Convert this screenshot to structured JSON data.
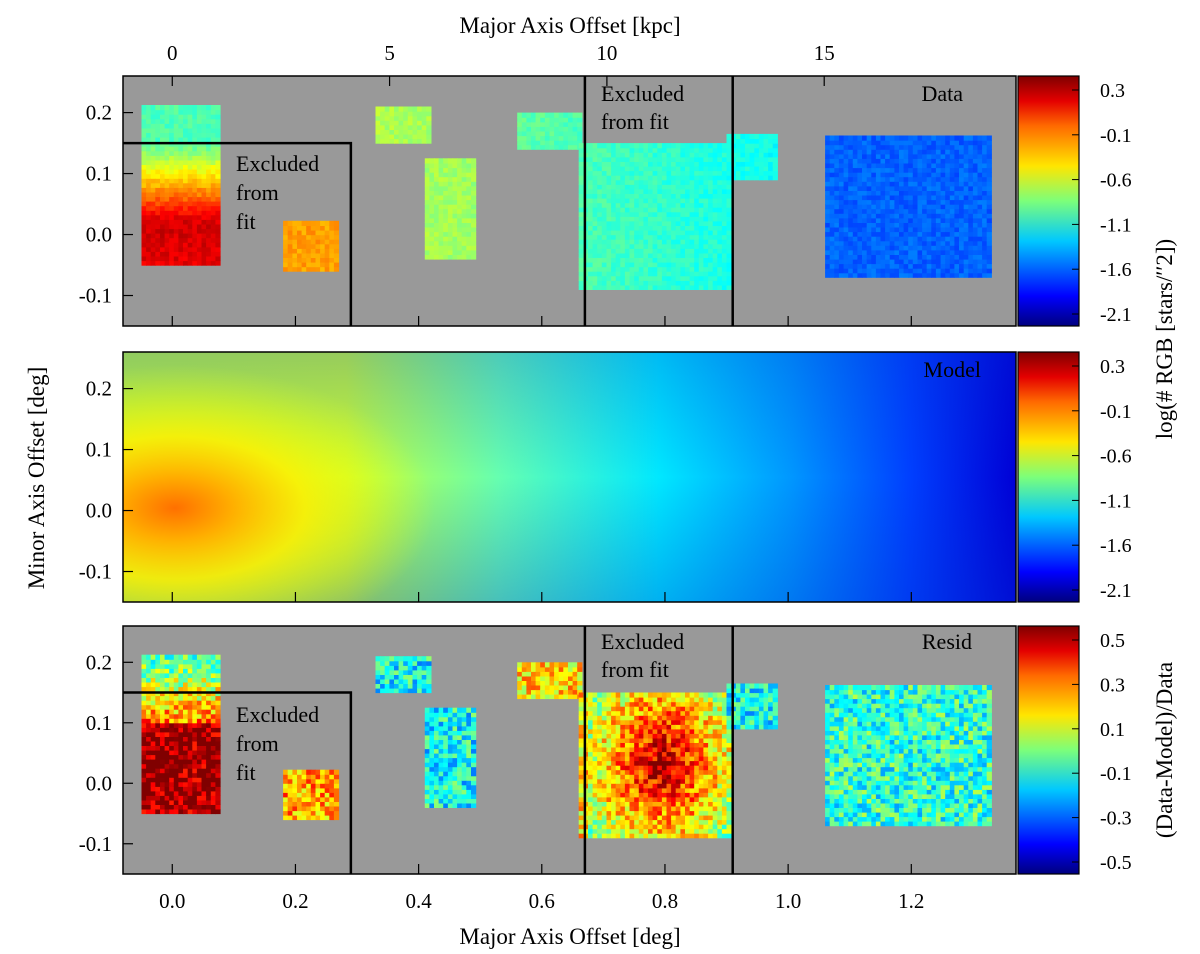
{
  "chart_data": {
    "type": "heatmap",
    "x_top_axis": {
      "label": "Major Axis Offset [kpc]",
      "ticks": [
        0,
        5,
        10,
        15
      ]
    },
    "x_bottom_axis": {
      "label": "Major Axis Offset [deg]",
      "ticks": [
        "0.0",
        "0.2",
        "0.4",
        "0.6",
        "0.8",
        "1.0",
        "1.2"
      ],
      "range": [
        -0.08,
        1.37
      ]
    },
    "y_axis": {
      "label": "Minor Axis Offset [deg]",
      "ticks": [
        "-0.1",
        "0.0",
        "0.1",
        "0.2"
      ],
      "range": [
        -0.15,
        0.26
      ]
    },
    "panels": [
      {
        "name": "Data",
        "label": "Data",
        "annotations": [
          {
            "lines": [
              "Excluded",
              "from",
              "fit"
            ]
          },
          {
            "lines": [
              "Excluded",
              "from fit"
            ]
          }
        ],
        "colorbar": {
          "ticks": [
            "0.3",
            "-0.1",
            "-0.6",
            "-1.1",
            "-1.6",
            "-2.1"
          ]
        }
      },
      {
        "name": "Model",
        "label": "Model",
        "colorbar": {
          "ticks": [
            "0.3",
            "-0.1",
            "-0.6",
            "-1.1",
            "-1.6",
            "-2.1"
          ]
        }
      },
      {
        "name": "Resid",
        "label": "Resid",
        "annotations": [
          {
            "lines": [
              "Excluded",
              "from",
              "fit"
            ]
          },
          {
            "lines": [
              "Excluded",
              "from fit"
            ]
          }
        ],
        "colorbar": {
          "ticks": [
            "0.5",
            "0.3",
            "0.1",
            "-0.1",
            "-0.3",
            "-0.5"
          ]
        }
      }
    ],
    "colorbar_label_top": "log(# RGB [stars/′′2])",
    "colorbar_label_bottom": "(Data-Model)/Data",
    "excluded_regions": [
      {
        "x_max_deg": 0.29,
        "y_max_deg": 0.15
      },
      {
        "x_min_deg": 0.67,
        "x_max_deg": 0.91
      }
    ],
    "fields_deg": [
      {
        "x": [
          -0.05,
          0.07
        ],
        "y": [
          -0.05,
          0.21
        ]
      },
      {
        "x": [
          0.18,
          0.27
        ],
        "y": [
          -0.06,
          0.02
        ]
      },
      {
        "x": [
          0.33,
          0.42
        ],
        "y": [
          0.15,
          0.21
        ]
      },
      {
        "x": [
          0.41,
          0.49
        ],
        "y": [
          -0.04,
          0.12
        ]
      },
      {
        "x": [
          0.56,
          0.66
        ],
        "y": [
          0.14,
          0.2
        ]
      },
      {
        "x": [
          0.66,
          0.9
        ],
        "y": [
          -0.09,
          0.15
        ]
      },
      {
        "x": [
          0.9,
          0.98
        ],
        "y": [
          0.09,
          0.16
        ]
      },
      {
        "x": [
          1.06,
          1.33
        ],
        "y": [
          -0.07,
          0.16
        ]
      }
    ]
  }
}
